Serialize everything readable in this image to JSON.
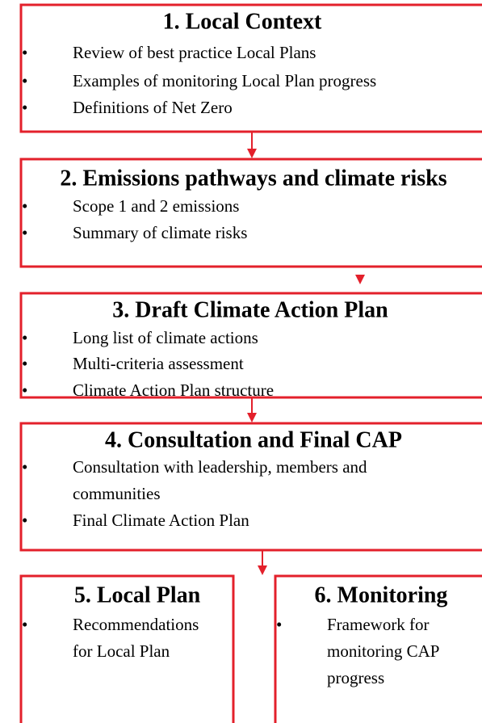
{
  "boxes": [
    {
      "title": "1. Local Context",
      "bullets": [
        [
          "Review of best practice Local Plans"
        ],
        [
          "Examples of monitoring Local Plan progress"
        ],
        [
          "Definitions of Net Zero"
        ]
      ]
    },
    {
      "title": "2. Emissions pathways and climate risks",
      "bullets": [
        [
          "Scope 1 and 2 emissions"
        ],
        [
          "Summary of climate risks"
        ]
      ]
    },
    {
      "title": "3. Draft Climate Action Plan",
      "bullets": [
        [
          "Long list of climate actions"
        ],
        [
          "Multi-criteria assessment"
        ],
        [
          "Climate Action Plan structure"
        ]
      ]
    },
    {
      "title": "4. Consultation and Final CAP",
      "bullets": [
        [
          "Consultation with leadership, members and",
          "communities"
        ],
        [
          "Final Climate Action Plan"
        ]
      ]
    },
    {
      "title": "5. Local Plan",
      "bullets": [
        [
          "Recommendations",
          "for Local Plan"
        ]
      ]
    },
    {
      "title": "6. Monitoring",
      "bullets": [
        [
          "Framework for",
          "monitoring CAP",
          "progress"
        ]
      ]
    }
  ]
}
